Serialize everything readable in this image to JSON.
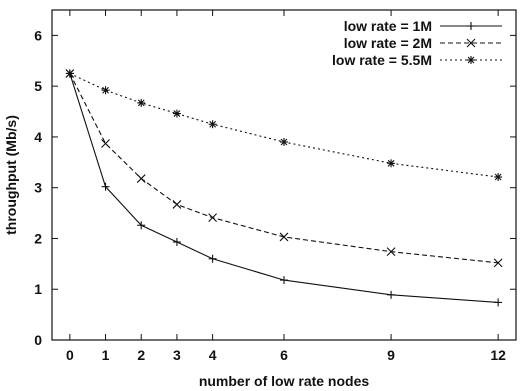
{
  "chart_data": {
    "type": "line",
    "xlabel": "number of low rate nodes",
    "ylabel": "throughput (Mb/s)",
    "x": [
      0,
      1,
      2,
      3,
      4,
      6,
      9,
      12
    ],
    "x_ticks": [
      0,
      1,
      2,
      3,
      4,
      6,
      9,
      12
    ],
    "y_ticks": [
      0,
      1,
      2,
      3,
      4,
      5,
      6
    ],
    "xlim": [
      -0.5,
      12.5
    ],
    "ylim": [
      0,
      6.5
    ],
    "grid": false,
    "legend_position": "top-right",
    "series": [
      {
        "name": "low rate = 1M",
        "marker": "plus",
        "line_style": "solid",
        "values": [
          5.25,
          3.02,
          2.26,
          1.93,
          1.6,
          1.18,
          0.89,
          0.74
        ]
      },
      {
        "name": "low rate = 2M",
        "marker": "cross",
        "line_style": "dashed",
        "values": [
          5.25,
          3.87,
          3.18,
          2.67,
          2.41,
          2.03,
          1.74,
          1.52
        ]
      },
      {
        "name": "low rate = 5.5M",
        "marker": "star",
        "line_style": "dotted",
        "values": [
          5.25,
          4.92,
          4.67,
          4.46,
          4.25,
          3.9,
          3.48,
          3.21
        ]
      }
    ],
    "colors": {
      "line": "#111111",
      "axes": "#111111",
      "background": "#ffffff"
    }
  }
}
